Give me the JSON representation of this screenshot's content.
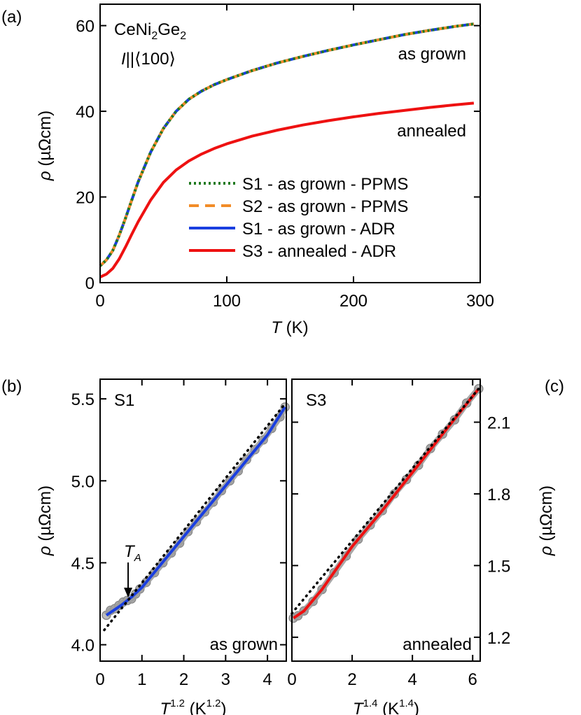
{
  "panel_labels": {
    "a": "(a)",
    "b": "(b)",
    "c": "(c)"
  },
  "chart_data": [
    {
      "id": "a",
      "type": "line",
      "xlabel_italic": "T",
      "xlabel_unit": " (K)",
      "ylabel_italic": "ρ",
      "ylabel_unit": " (µΩcm)",
      "xlim": [
        0,
        300
      ],
      "ylim": [
        0,
        65
      ],
      "xticks": [
        0,
        100,
        200,
        300
      ],
      "yticks": [
        0,
        20,
        40,
        60
      ],
      "compound_label": {
        "base1": "CeNi",
        "sub1": "2",
        "base2": "Ge",
        "sub2": "2"
      },
      "current_label": {
        "italic": "I",
        "rest": "||⟨100⟩"
      },
      "annotations": [
        {
          "text": "as grown",
          "x": 205,
          "y": 55.0
        },
        {
          "text": "annealed",
          "x": 205,
          "y": 36.0
        }
      ],
      "legend_position": "lower-right",
      "series": [
        {
          "name": "S1 - as grown - PPMS",
          "color": "#1f7a1f",
          "dash": "dotted",
          "x": [
            0,
            5,
            10,
            15,
            20,
            25,
            30,
            40,
            50,
            60,
            70,
            80,
            90,
            100,
            120,
            140,
            160,
            180,
            200,
            220,
            240,
            260,
            280,
            295
          ],
          "y": [
            3.9,
            5.3,
            7.5,
            11.0,
            15.0,
            19.3,
            23.5,
            30.5,
            36.0,
            40.0,
            42.8,
            44.7,
            46.2,
            47.4,
            49.5,
            51.3,
            52.8,
            54.2,
            55.5,
            56.7,
            57.9,
            58.9,
            59.8,
            60.4
          ]
        },
        {
          "name": "S2 - as grown - PPMS",
          "color": "#f28c28",
          "dash": "dashed",
          "x": [
            0,
            5,
            10,
            15,
            20,
            25,
            30,
            40,
            50,
            60,
            70,
            80,
            90,
            100,
            120,
            140,
            160,
            180,
            200,
            220,
            240,
            260,
            280,
            295
          ],
          "y": [
            3.9,
            5.3,
            7.5,
            11.0,
            15.0,
            19.3,
            23.5,
            30.5,
            36.0,
            40.0,
            42.8,
            44.7,
            46.2,
            47.4,
            49.5,
            51.3,
            52.8,
            54.2,
            55.5,
            56.7,
            57.9,
            58.9,
            59.8,
            60.4
          ]
        },
        {
          "name": "S1 - as grown - ADR",
          "color": "#1a3fe0",
          "dash": "solid",
          "x": [
            0,
            5,
            10,
            15,
            20,
            25,
            30,
            40,
            50,
            60,
            70,
            80,
            90,
            100,
            120,
            140,
            160,
            180,
            200,
            220,
            240,
            260,
            280,
            295
          ],
          "y": [
            3.9,
            5.3,
            7.5,
            11.0,
            15.0,
            19.3,
            23.5,
            30.5,
            36.0,
            40.0,
            42.8,
            44.7,
            46.2,
            47.4,
            49.5,
            51.3,
            52.8,
            54.2,
            55.5,
            56.7,
            57.9,
            58.9,
            59.8,
            60.4
          ]
        },
        {
          "name": "S3 - annealed - ADR",
          "color": "#ee1111",
          "dash": "solid",
          "x": [
            0,
            5,
            10,
            15,
            20,
            25,
            30,
            40,
            50,
            60,
            70,
            80,
            90,
            100,
            120,
            140,
            160,
            180,
            200,
            220,
            240,
            260,
            280,
            295
          ],
          "y": [
            1.3,
            2.0,
            3.3,
            5.5,
            8.3,
            11.3,
            14.2,
            19.3,
            23.4,
            26.3,
            28.4,
            30.0,
            31.3,
            32.4,
            34.2,
            35.6,
            36.8,
            37.8,
            38.7,
            39.5,
            40.2,
            40.9,
            41.5,
            41.9
          ]
        }
      ]
    },
    {
      "id": "b",
      "type": "scatter",
      "xlabel_italic": "T",
      "xlabel_sup": "1.2",
      "xlabel_unit_pre": " (K",
      "xlabel_unit_sup": "1.2",
      "xlabel_unit_post": ")",
      "ylabel_italic": "ρ",
      "ylabel_unit": " (µΩcm)",
      "xlim": [
        0,
        4.45
      ],
      "ylim": [
        3.9,
        5.62
      ],
      "xticks": [
        0,
        1,
        2,
        3,
        4
      ],
      "yticks": [
        4.0,
        4.5,
        5.0,
        5.5
      ],
      "ytick_labels": [
        "4.0",
        "4.5",
        "5.0",
        "5.5"
      ],
      "sample": "S1",
      "state": "as grown",
      "marker_label": {
        "base": "T",
        "sub": "A"
      },
      "marker_x": 0.67,
      "marker_y": 4.28,
      "data_points": {
        "x": [
          0.15,
          0.25,
          0.35,
          0.45,
          0.55,
          0.65,
          0.75,
          0.85,
          0.95,
          1.1,
          1.3,
          1.5,
          1.7,
          1.9,
          2.1,
          2.3,
          2.5,
          2.7,
          2.9,
          3.1,
          3.3,
          3.5,
          3.7,
          3.9,
          4.1,
          4.3,
          4.42
        ],
        "y": [
          4.18,
          4.21,
          4.22,
          4.24,
          4.26,
          4.27,
          4.28,
          4.31,
          4.34,
          4.38,
          4.44,
          4.5,
          4.56,
          4.62,
          4.69,
          4.75,
          4.81,
          4.87,
          4.94,
          5.0,
          5.06,
          5.13,
          5.19,
          5.25,
          5.32,
          5.39,
          5.45
        ]
      },
      "fit_line": {
        "color": "#1a3fe0",
        "x": [
          0.15,
          0.5,
          0.75,
          1.0,
          2.0,
          3.0,
          4.0,
          4.42
        ],
        "y": [
          4.18,
          4.24,
          4.29,
          4.35,
          4.66,
          4.97,
          5.28,
          5.45
        ]
      },
      "dotted_fit": {
        "color": "#000000",
        "x": [
          0.1,
          4.42
        ],
        "y": [
          4.09,
          5.47
        ]
      }
    },
    {
      "id": "c",
      "type": "scatter",
      "xlabel_italic": "T",
      "xlabel_sup": "1.4",
      "xlabel_unit_pre": " (K",
      "xlabel_unit_sup": "1.4",
      "xlabel_unit_post": ")",
      "ylabel_italic": "ρ",
      "ylabel_unit": " (µΩcm)",
      "xlim": [
        0,
        6.25
      ],
      "ylim": [
        1.1,
        2.28
      ],
      "xticks": [
        0,
        2,
        4,
        6
      ],
      "yticks": [
        1.2,
        1.5,
        1.8,
        2.1
      ],
      "ytick_labels": [
        "1.2",
        "1.5",
        "1.8",
        "2.1"
      ],
      "sample": "S3",
      "state": "annealed",
      "data_points": {
        "x": [
          0.05,
          0.2,
          0.4,
          0.7,
          1.0,
          1.4,
          1.8,
          2.2,
          2.6,
          3.0,
          3.4,
          3.8,
          4.2,
          4.6,
          5.0,
          5.4,
          5.8,
          6.2
        ],
        "y": [
          1.28,
          1.29,
          1.31,
          1.35,
          1.4,
          1.47,
          1.54,
          1.61,
          1.67,
          1.73,
          1.8,
          1.86,
          1.92,
          1.99,
          2.05,
          2.11,
          2.18,
          2.24
        ]
      },
      "fit_line": {
        "color": "#ee1111",
        "x": [
          0.05,
          0.4,
          1.0,
          2.0,
          3.0,
          4.0,
          5.0,
          6.2
        ],
        "y": [
          1.28,
          1.31,
          1.4,
          1.58,
          1.73,
          1.89,
          2.05,
          2.24
        ]
      },
      "dotted_fit": {
        "color": "#000000",
        "x": [
          0.0,
          6.2
        ],
        "y": [
          1.3,
          2.24
        ]
      }
    }
  ]
}
